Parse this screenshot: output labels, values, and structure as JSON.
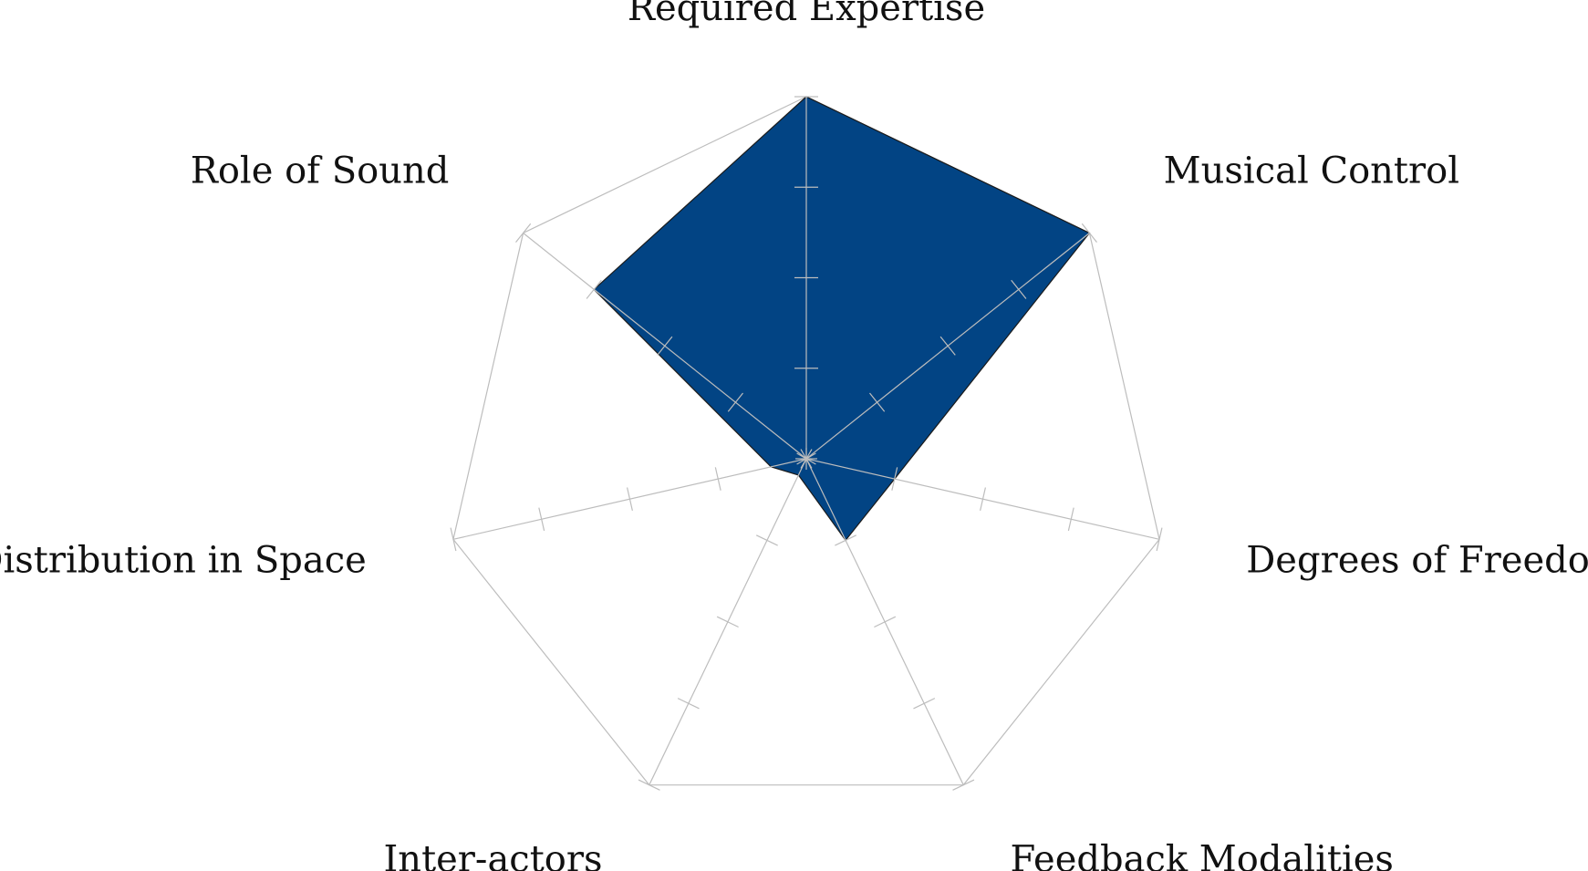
{
  "chart_data": {
    "type": "radar",
    "axes": [
      "Required Expertise",
      "Musical Control",
      "Degrees of Freedom",
      "Feedback Modalities",
      "Inter-actors",
      "Distribution in Space",
      "Role of Sound"
    ],
    "values": [
      4,
      4,
      1,
      1,
      0.2,
      0.4,
      3
    ],
    "range": [
      0,
      4
    ],
    "levels": 4,
    "colors": {
      "fill": "#024484",
      "outline": "#1a1a1a",
      "grid": "#bdbdbd"
    }
  }
}
